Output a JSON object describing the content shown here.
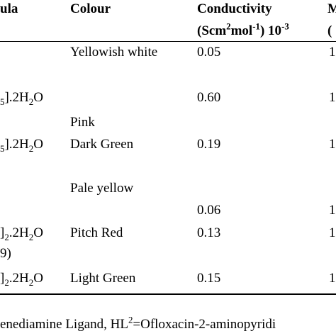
{
  "header": {
    "formula_fragment": "ula",
    "colour": "Colour",
    "conductivity": "Conductivity",
    "cond_unit_a": "(Scm",
    "cond_unit_sup1": "2",
    "cond_unit_b": "mol",
    "cond_unit_sup2": "-1",
    "cond_unit_c": ") 10",
    "cond_unit_sup3": "-3",
    "next_col_fragment": "M",
    "next_col_fragment2": "("
  },
  "rows": [
    {
      "formula": null,
      "colour": "Yellowish white",
      "conductivity": "0.05",
      "next": "1"
    },
    {
      "formula_a": "5",
      "formula_b": "].2H",
      "formula_sub": "2",
      "formula_c": "O",
      "conductivity": "0.60",
      "next": "1"
    },
    {
      "colour": "Pink"
    },
    {
      "formula_a": "5",
      "formula_b": "].2H",
      "formula_sub": "2",
      "formula_c": "O",
      "colour": "Dark Green",
      "conductivity": "0.19",
      "next": "1"
    },
    {
      "colour": "Pale yellow"
    },
    {
      "conductivity": "0.06",
      "next": "1"
    },
    {
      "formula_a": "]",
      "formula_sub1": "2",
      "formula_b": ".2H",
      "formula_sub2": "2",
      "formula_c": "O",
      "colour": "Pitch Red",
      "conductivity": "0.13",
      "next": "1"
    },
    {
      "formula_tail": "9)"
    },
    {
      "formula_a": "]",
      "formula_sub1": "2",
      "formula_b": ".2H",
      "formula_sub2": "2",
      "formula_c": "O",
      "colour": "Light Green",
      "conductivity": "0.15",
      "next": "1"
    }
  ],
  "footnote": {
    "a": "enediamine Ligand, HL",
    "sup": "2",
    "b": "=Ofloxacin-2-aminopyridi"
  }
}
